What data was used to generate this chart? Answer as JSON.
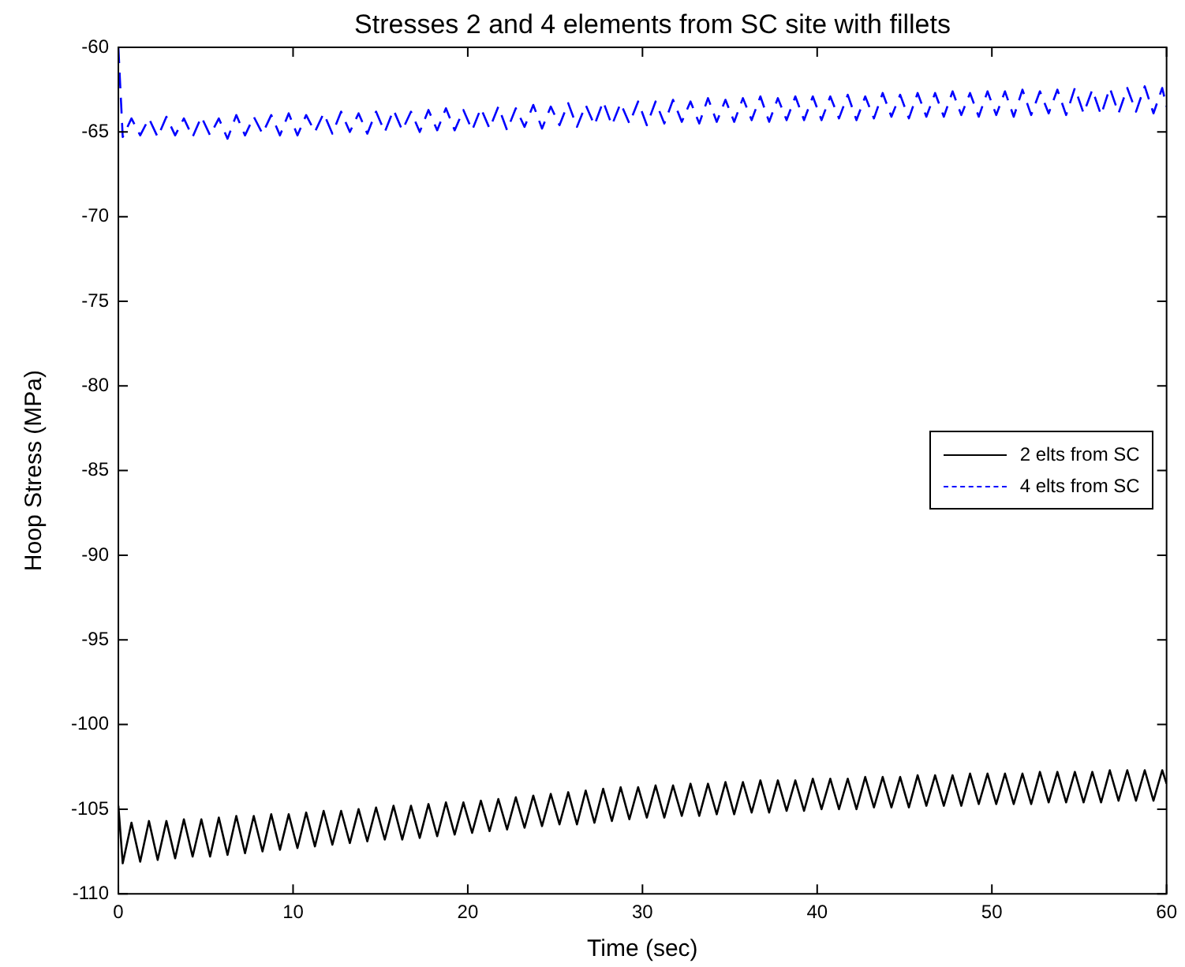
{
  "chart_data": {
    "type": "line",
    "title": "Stresses 2 and 4 elements from SC site with fillets",
    "xlabel": "Time (sec)",
    "ylabel": "Hoop Stress (MPa)",
    "x": [
      0,
      0.25,
      0.75,
      1.25,
      1.75,
      2.25,
      2.75,
      3.25,
      3.75,
      4.25,
      4.75,
      5.25,
      5.75,
      6.25,
      6.75,
      7.25,
      7.75,
      8.25,
      8.75,
      9.25,
      9.75,
      10.25,
      10.75,
      11.25,
      11.75,
      12.25,
      12.75,
      13.25,
      13.75,
      14.25,
      14.75,
      15.25,
      15.75,
      16.25,
      16.75,
      17.25,
      17.75,
      18.25,
      18.75,
      19.25,
      19.75,
      20.25,
      20.75,
      21.25,
      21.75,
      22.25,
      22.75,
      23.25,
      23.75,
      24.25,
      24.75,
      25.25,
      25.75,
      26.25,
      26.75,
      27.25,
      27.75,
      28.25,
      28.75,
      29.25,
      29.75,
      30.25,
      30.75,
      31.25,
      31.75,
      32.25,
      32.75,
      33.25,
      33.75,
      34.25,
      34.75,
      35.25,
      35.75,
      36.25,
      36.75,
      37.25,
      37.75,
      38.25,
      38.75,
      39.25,
      39.75,
      40.25,
      40.75,
      41.25,
      41.75,
      42.25,
      42.75,
      43.25,
      43.75,
      44.25,
      44.75,
      45.25,
      45.75,
      46.25,
      46.75,
      47.25,
      47.75,
      48.25,
      48.75,
      49.25,
      49.75,
      50.25,
      50.75,
      51.25,
      51.75,
      52.25,
      52.75,
      53.25,
      53.75,
      54.25,
      54.75,
      55.25,
      55.75,
      56.25,
      56.75,
      57.25,
      57.75,
      58.25,
      58.75,
      59.25,
      59.75,
      60
    ],
    "series": [
      {
        "name": "2 elts from SC",
        "color": "#000000",
        "line_style": "solid",
        "values": [
          -104.8,
          -108.2,
          -105.8,
          -108.1,
          -105.7,
          -108.0,
          -105.7,
          -107.9,
          -105.6,
          -107.8,
          -105.6,
          -107.8,
          -105.5,
          -107.7,
          -105.4,
          -107.6,
          -105.4,
          -107.5,
          -105.3,
          -107.4,
          -105.3,
          -107.3,
          -105.2,
          -107.2,
          -105.1,
          -107.1,
          -105.1,
          -107.0,
          -105.0,
          -106.9,
          -104.9,
          -106.8,
          -104.8,
          -106.8,
          -104.8,
          -106.7,
          -104.7,
          -106.6,
          -104.6,
          -106.5,
          -104.6,
          -106.4,
          -104.5,
          -106.3,
          -104.4,
          -106.2,
          -104.3,
          -106.1,
          -104.2,
          -106.0,
          -104.1,
          -105.9,
          -104.0,
          -105.9,
          -103.9,
          -105.8,
          -103.8,
          -105.7,
          -103.7,
          -105.6,
          -103.7,
          -105.5,
          -103.6,
          -105.5,
          -103.6,
          -105.4,
          -103.5,
          -105.4,
          -103.5,
          -105.3,
          -103.4,
          -105.3,
          -103.4,
          -105.2,
          -103.3,
          -105.2,
          -103.3,
          -105.1,
          -103.3,
          -105.1,
          -103.2,
          -105.0,
          -103.2,
          -105.0,
          -103.2,
          -105.0,
          -103.1,
          -104.9,
          -103.1,
          -104.9,
          -103.1,
          -104.9,
          -103.0,
          -104.8,
          -103.0,
          -104.8,
          -103.0,
          -104.8,
          -102.9,
          -104.7,
          -102.9,
          -104.7,
          -102.9,
          -104.7,
          -102.9,
          -104.7,
          -102.8,
          -104.6,
          -102.8,
          -104.6,
          -102.8,
          -104.6,
          -102.8,
          -104.6,
          -102.7,
          -104.5,
          -102.7,
          -104.5,
          -102.7,
          -104.5,
          -102.7,
          -103.5
        ]
      },
      {
        "name": "4 elts from SC",
        "color": "#0000ff",
        "line_style": "dashed",
        "values": [
          -60,
          -65.3,
          -64.2,
          -65.2,
          -64.2,
          -65.3,
          -64.1,
          -65.2,
          -64.2,
          -65.3,
          -64.1,
          -65.2,
          -64.2,
          -65.4,
          -64.0,
          -65.2,
          -64.1,
          -65.1,
          -64.0,
          -65.2,
          -63.9,
          -65.2,
          -64.0,
          -65.0,
          -63.9,
          -65.1,
          -63.8,
          -65.0,
          -63.9,
          -65.1,
          -63.8,
          -65.0,
          -63.7,
          -64.9,
          -63.8,
          -65.0,
          -63.7,
          -64.9,
          -63.6,
          -64.9,
          -63.7,
          -64.9,
          -63.6,
          -64.8,
          -63.5,
          -64.9,
          -63.6,
          -64.7,
          -63.4,
          -64.8,
          -63.5,
          -64.6,
          -63.3,
          -64.7,
          -63.4,
          -64.6,
          -63.2,
          -64.6,
          -63.3,
          -64.5,
          -63.2,
          -64.6,
          -63.2,
          -64.5,
          -63.1,
          -64.4,
          -63.2,
          -64.5,
          -63.0,
          -64.4,
          -63.1,
          -64.4,
          -63.0,
          -64.3,
          -62.9,
          -64.4,
          -63.0,
          -64.3,
          -62.9,
          -64.3,
          -62.9,
          -64.3,
          -62.9,
          -64.2,
          -62.8,
          -64.3,
          -62.9,
          -64.2,
          -62.7,
          -64.1,
          -62.8,
          -64.2,
          -62.7,
          -64.1,
          -62.7,
          -64.1,
          -62.6,
          -64.0,
          -62.7,
          -64.1,
          -62.6,
          -64.0,
          -62.6,
          -64.1,
          -62.5,
          -64.0,
          -62.6,
          -63.9,
          -62.5,
          -64.0,
          -62.4,
          -63.9,
          -62.5,
          -64.0,
          -62.4,
          -63.9,
          -62.4,
          -63.8,
          -62.3,
          -63.9,
          -62.4,
          -63.5
        ]
      }
    ],
    "xlim": [
      0,
      60
    ],
    "xticks": [
      0,
      10,
      20,
      30,
      40,
      50,
      60
    ],
    "ylim": [
      -110,
      -60
    ],
    "yticks": [
      -110,
      -105,
      -100,
      -95,
      -90,
      -85,
      -80,
      -75,
      -70,
      -65,
      -60
    ],
    "grid": false,
    "legend": "right",
    "marker": "none"
  }
}
